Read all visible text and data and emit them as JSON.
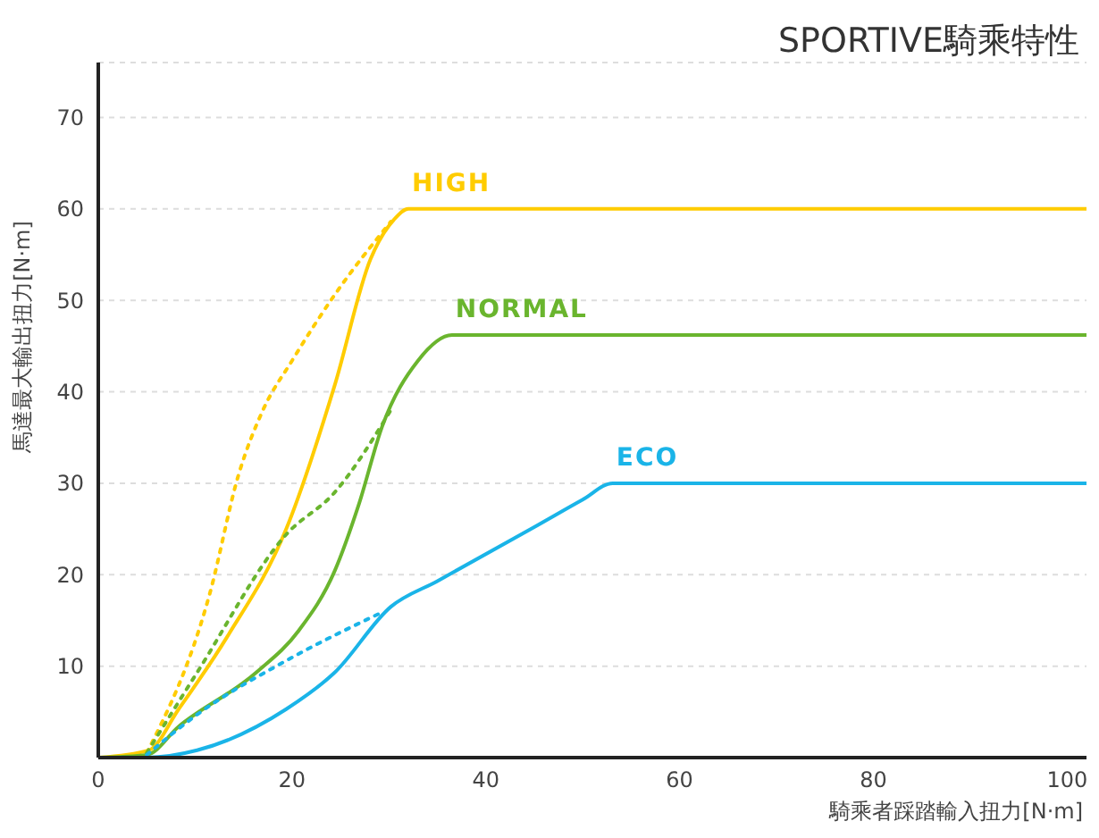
{
  "chart_data": {
    "type": "line",
    "title": "SPORTIVE騎乘特性",
    "xlabel": "騎乘者踩踏輸入扭力[N·m]",
    "ylabel": "馬達最大輸出扭力[N·m]",
    "xlim": [
      0,
      102
    ],
    "xticks": [
      0,
      20,
      40,
      60,
      80,
      100
    ],
    "ylim": [
      0,
      76
    ],
    "yticks": [
      10,
      20,
      30,
      40,
      50,
      60,
      70
    ],
    "grid": "y",
    "marker": "none",
    "series": [
      {
        "name": "HIGH",
        "color": "#ffcc00",
        "line_style": "solid",
        "x": [
          0,
          5.2,
          8.3,
          13.3,
          19.4,
          24.4,
          28.1,
          30.5,
          32,
          102
        ],
        "values": [
          0,
          0.8,
          5.3,
          13.2,
          25,
          40.7,
          54.5,
          58.8,
          60,
          60
        ]
      },
      {
        "color": "#ffcc00",
        "line_style": "dotted",
        "x": [
          5,
          11.5,
          14.5,
          17,
          20,
          24.4,
          30.2
        ],
        "values": [
          0.5,
          17.9,
          31,
          38,
          43.4,
          50.6,
          58.6
        ]
      },
      {
        "name": "NORMAL",
        "color": "#6ab52e",
        "line_style": "solid",
        "x": [
          0,
          5,
          8.3,
          16.3,
          20.7,
          24.4,
          26.9,
          29.3,
          33,
          36.5,
          102
        ],
        "values": [
          0,
          0.3,
          3.4,
          9.3,
          13.9,
          20.4,
          27.7,
          36.2,
          43.4,
          46.2,
          46.2
        ]
      },
      {
        "color": "#6ab52e",
        "line_style": "dotted",
        "x": [
          5,
          10.2,
          19.4,
          24.4,
          30.2
        ],
        "values": [
          0.5,
          9.3,
          24.4,
          29,
          38
        ]
      },
      {
        "name": "ECO",
        "color": "#1ab4e8",
        "line_style": "solid",
        "x": [
          0,
          5,
          10.2,
          19.4,
          24.4,
          30.2,
          35,
          45,
          50,
          53.1,
          102
        ],
        "values": [
          0,
          0,
          0.8,
          5.3,
          9.3,
          16.5,
          19.3,
          25.2,
          28.2,
          30,
          30
        ]
      },
      {
        "color": "#1ab4e8",
        "line_style": "dotted",
        "x": [
          5,
          10.2,
          19.4,
          29.3
        ],
        "values": [
          0.3,
          4.7,
          10.6,
          15.9
        ]
      }
    ]
  }
}
